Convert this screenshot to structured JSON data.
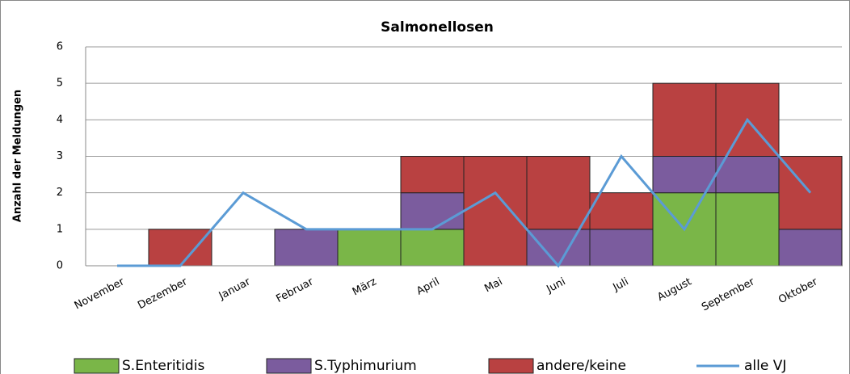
{
  "chart_data": {
    "type": "bar",
    "stacked": true,
    "title": "Salmonellosen",
    "y_label": "Anzahl der Meldungen",
    "categories": [
      "November",
      "Dezember",
      "Januar",
      "Februar",
      "März",
      "April",
      "Mai",
      "Juni",
      "Juli",
      "August",
      "September",
      "Oktober"
    ],
    "series": [
      {
        "name": "S.Enteritidis",
        "color": "#7ab648",
        "type": "bar",
        "values": [
          0,
          0,
          0,
          0,
          1,
          1,
          0,
          0,
          0,
          2,
          2,
          0
        ]
      },
      {
        "name": "S.Typhimurium",
        "color": "#7b5c9e",
        "type": "bar",
        "values": [
          0,
          0,
          0,
          1,
          0,
          1,
          0,
          1,
          1,
          1,
          1,
          1
        ]
      },
      {
        "name": "andere/keine",
        "color": "#b94141",
        "type": "bar",
        "values": [
          0,
          1,
          0,
          0,
          0,
          1,
          3,
          2,
          1,
          2,
          2,
          2
        ]
      },
      {
        "name": "alle VJ",
        "color": "#5b9bd5",
        "type": "line",
        "values": [
          0,
          0,
          2,
          1,
          1,
          1,
          2,
          0,
          3,
          1,
          4,
          2
        ]
      }
    ],
    "ylim": [
      0,
      6
    ],
    "yticks": [
      0,
      1,
      2,
      3,
      4,
      5,
      6
    ],
    "grid": true,
    "legend": "bottom"
  }
}
